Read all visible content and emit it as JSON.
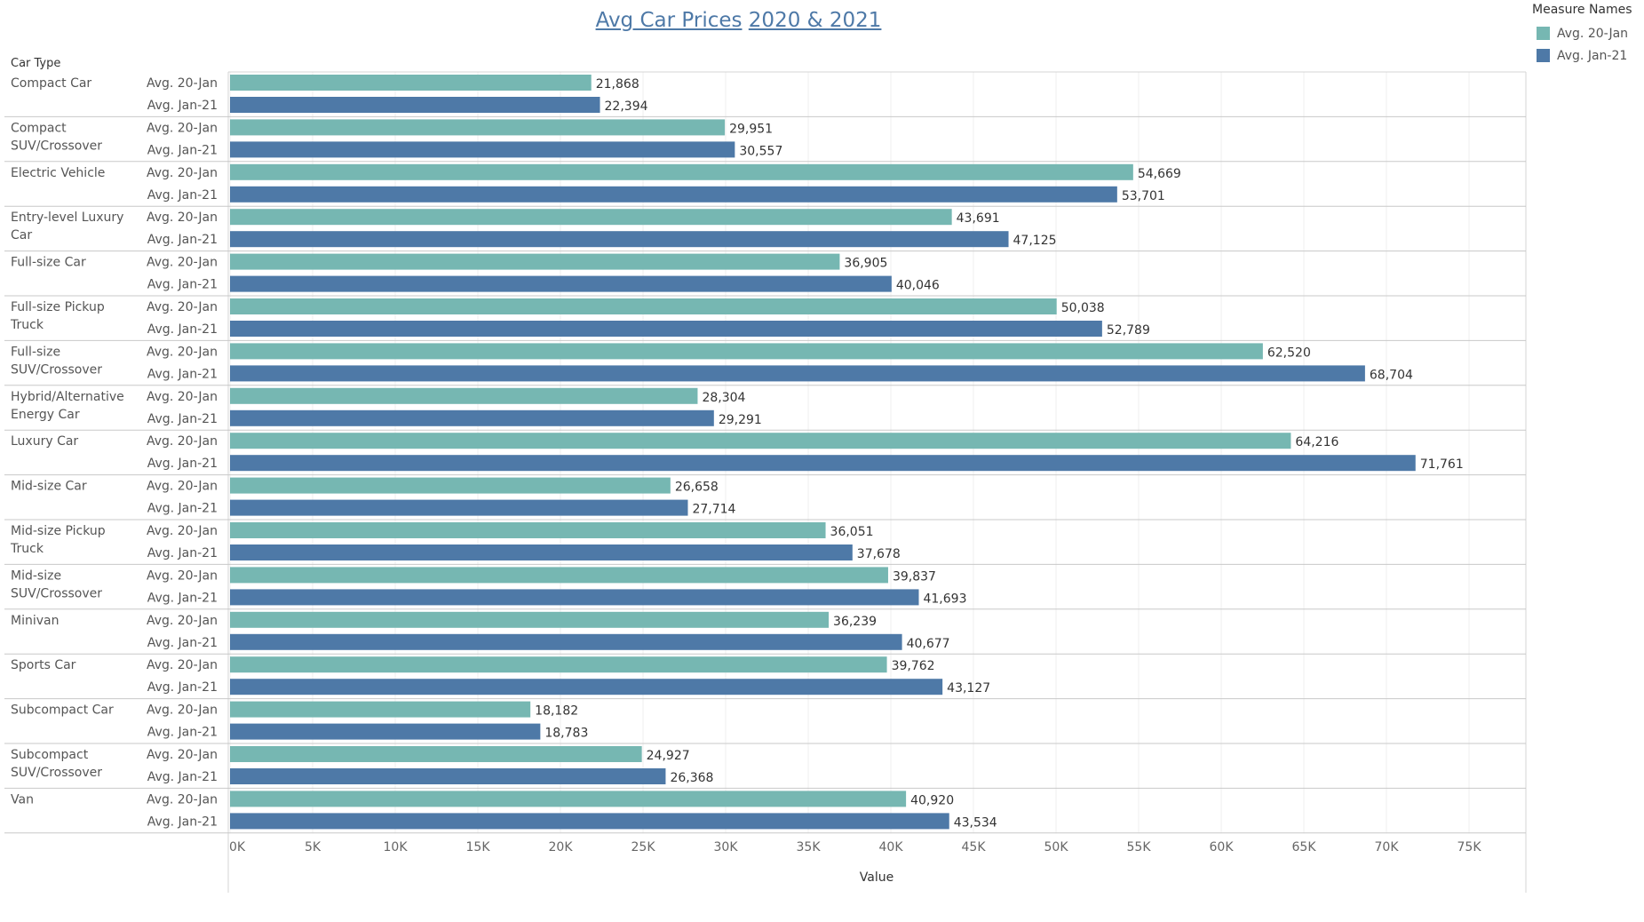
{
  "title": {
    "part1": "Avg Car Prices",
    "part2": "2020 & 2021"
  },
  "legend": {
    "title": "Measure Names",
    "items": [
      {
        "label": "Avg. 20-Jan",
        "color": "#76b7b2"
      },
      {
        "label": "Avg. Jan-21",
        "color": "#4e79a7"
      }
    ]
  },
  "chart_data": {
    "type": "bar",
    "orientation": "horizontal",
    "row_header": "Car Type",
    "xlabel": "Value",
    "xlim": [
      0,
      75000
    ],
    "x_ticks": [
      "0K",
      "5K",
      "10K",
      "15K",
      "20K",
      "25K",
      "30K",
      "35K",
      "40K",
      "45K",
      "50K",
      "55K",
      "60K",
      "65K",
      "70K",
      "75K"
    ],
    "categories": [
      "Compact Car",
      "Compact SUV/Crossover",
      "Electric Vehicle",
      "Entry-level Luxury Car",
      "Full-size Car",
      "Full-size Pickup Truck",
      "Full-size SUV/Crossover",
      "Hybrid/Alternative Energy Car",
      "Luxury Car",
      "Mid-size Car",
      "Mid-size Pickup Truck",
      "Mid-size SUV/Crossover",
      "Minivan",
      "Sports Car",
      "Subcompact Car",
      "Subcompact SUV/Crossover",
      "Van"
    ],
    "category_lines": [
      [
        "Compact Car"
      ],
      [
        "Compact",
        "SUV/Crossover"
      ],
      [
        "Electric Vehicle"
      ],
      [
        "Entry-level Luxury",
        "Car"
      ],
      [
        "Full-size Car"
      ],
      [
        "Full-size Pickup",
        "Truck"
      ],
      [
        "Full-size",
        "SUV/Crossover"
      ],
      [
        "Hybrid/Alternative",
        "Energy Car"
      ],
      [
        "Luxury Car"
      ],
      [
        "Mid-size Car"
      ],
      [
        "Mid-size Pickup",
        "Truck"
      ],
      [
        "Mid-size",
        "SUV/Crossover"
      ],
      [
        "Minivan"
      ],
      [
        "Sports Car"
      ],
      [
        "Subcompact Car"
      ],
      [
        "Subcompact",
        "SUV/Crossover"
      ],
      [
        "Van"
      ]
    ],
    "series": [
      {
        "name": "Avg. 20-Jan",
        "color": "#76b7b2",
        "values": [
          21868,
          29951,
          54669,
          43691,
          36905,
          50038,
          62520,
          28304,
          64216,
          26658,
          36051,
          39837,
          36239,
          39762,
          18182,
          24927,
          40920
        ],
        "labels": [
          "21,868",
          "29,951",
          "54,669",
          "43,691",
          "36,905",
          "50,038",
          "62,520",
          "28,304",
          "64,216",
          "26,658",
          "36,051",
          "39,837",
          "36,239",
          "39,762",
          "18,182",
          "24,927",
          "40,920"
        ]
      },
      {
        "name": "Avg. Jan-21",
        "color": "#4e79a7",
        "values": [
          22394,
          30557,
          53701,
          47125,
          40046,
          52789,
          68704,
          29291,
          71761,
          27714,
          37678,
          41693,
          40677,
          43127,
          18783,
          26368,
          43534
        ],
        "labels": [
          "22,394",
          "30,557",
          "53,701",
          "47,125",
          "40,046",
          "52,789",
          "68,704",
          "29,291",
          "71,761",
          "27,714",
          "37,678",
          "41,693",
          "40,677",
          "43,127",
          "18,783",
          "26,368",
          "43,534"
        ]
      }
    ],
    "grid": true,
    "legend_position": "top-right"
  }
}
